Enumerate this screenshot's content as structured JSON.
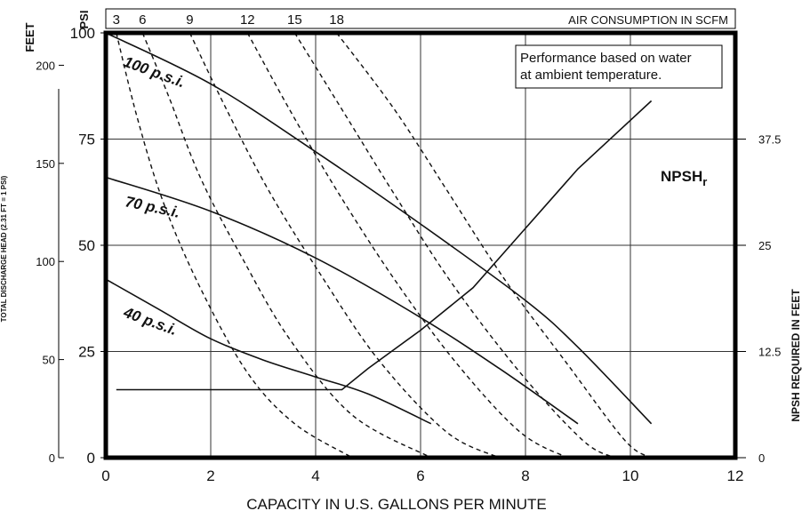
{
  "chart_data": {
    "type": "line",
    "title": "",
    "xlabel": "CAPACITY IN U.S. GALLONS PER MINUTE",
    "xlim": [
      0,
      12
    ],
    "x_ticks": [
      "0",
      "2",
      "4",
      "6",
      "8",
      "10",
      "12"
    ],
    "y_left_outer": {
      "label": "TOTAL DISCHARGE HEAD (2.31 FT = 1 PSI)",
      "unit": "PSI",
      "ticks": [
        "0",
        "50",
        "100",
        "150",
        "200"
      ]
    },
    "y_left_inner": {
      "label": "FEET",
      "ticks": [
        "0",
        "25",
        "50",
        "75",
        "100"
      ],
      "ylim": [
        0,
        100
      ]
    },
    "y_right": {
      "label": "NPSH REQUIRED IN FEET",
      "ticks": [
        "0",
        "12.5",
        "25",
        "37.5"
      ],
      "ylim": [
        0,
        50
      ]
    },
    "top_axis": {
      "label": "AIR CONSUMPTION IN SCFM",
      "ticks": [
        "3",
        "6",
        "9",
        "12",
        "15",
        "18"
      ]
    },
    "grid": true,
    "annotation": "Performance based on water at ambient temperature.",
    "annotation_lines": [
      "Performance based on water",
      "at ambient temperature."
    ],
    "series": [
      {
        "name": "100 p.s.i.",
        "style": "solid",
        "axis": "feet",
        "x": [
          0,
          2,
          4,
          6,
          8,
          9,
          10.4
        ],
        "y": [
          100,
          88,
          72,
          55,
          37,
          26,
          8
        ]
      },
      {
        "name": "70 p.s.i.",
        "style": "solid",
        "axis": "feet",
        "x": [
          0,
          2,
          4,
          6,
          7.5,
          9
        ],
        "y": [
          66,
          58,
          47,
          33,
          21,
          8
        ]
      },
      {
        "name": "40 p.s.i.",
        "style": "solid",
        "axis": "feet",
        "x": [
          0,
          1,
          2,
          3,
          4,
          5,
          6.2
        ],
        "y": [
          42,
          35,
          28,
          23,
          19,
          15,
          8
        ]
      },
      {
        "name": "NPSHr",
        "name_main": "NPSH",
        "name_sub": "r",
        "style": "solid",
        "axis": "npsh",
        "x": [
          0.2,
          4.5,
          5,
          6,
          7,
          8,
          9,
          10.4
        ],
        "y": [
          8,
          8,
          10.5,
          15,
          20,
          27,
          34,
          42
        ]
      }
    ],
    "air_curves": [
      {
        "scfm": "3",
        "x": [
          0.2,
          0.6,
          1.1,
          1.8,
          2.7,
          3.6,
          4.7
        ],
        "y": [
          100,
          80,
          60,
          40,
          20,
          8,
          0
        ]
      },
      {
        "scfm": "6",
        "x": [
          0.7,
          1.2,
          1.8,
          2.6,
          3.5,
          4.7,
          6.2
        ],
        "y": [
          100,
          85,
          66,
          47,
          28,
          10,
          0
        ]
      },
      {
        "scfm": "9",
        "x": [
          1.6,
          2.3,
          3.1,
          4.1,
          5.2,
          6.5,
          7.5
        ],
        "y": [
          100,
          82,
          63,
          43,
          23,
          6,
          0
        ]
      },
      {
        "scfm": "12",
        "x": [
          2.7,
          3.5,
          4.4,
          5.5,
          6.7,
          7.9,
          8.8
        ],
        "y": [
          100,
          82,
          63,
          42,
          22,
          6,
          0
        ]
      },
      {
        "scfm": "15",
        "x": [
          3.6,
          4.5,
          5.5,
          6.6,
          7.9,
          9.1,
          9.7
        ],
        "y": [
          100,
          82,
          62,
          41,
          20,
          4,
          0
        ]
      },
      {
        "scfm": "18",
        "x": [
          4.4,
          5.5,
          6.5,
          7.6,
          8.8,
          9.9,
          10.4
        ],
        "y": [
          100,
          82,
          63,
          42,
          22,
          4,
          0
        ]
      }
    ]
  }
}
